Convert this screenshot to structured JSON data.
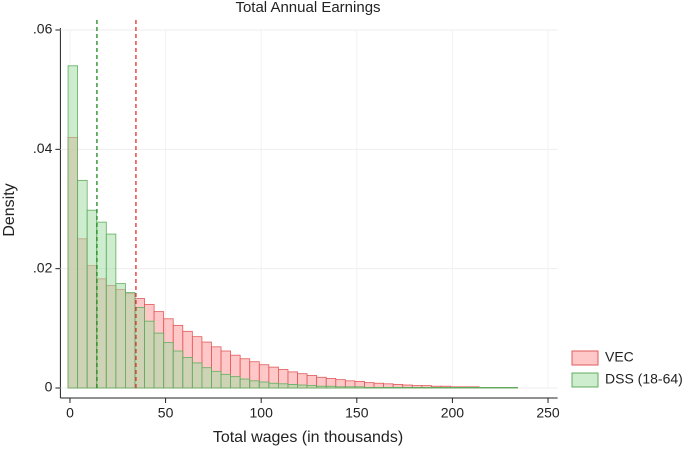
{
  "chart_data": {
    "type": "histogram",
    "title": "Total Annual Earnings",
    "x_label": "Total wages (in thousands)",
    "y_label": "Density",
    "bins": [
      -1,
      4,
      9,
      14,
      19,
      24,
      29,
      34,
      39,
      44,
      49,
      54,
      59,
      64,
      69,
      74,
      79,
      84,
      89,
      94,
      99,
      104,
      109,
      114,
      119,
      124,
      129,
      134,
      139,
      144,
      149,
      154,
      159,
      164,
      169,
      174,
      179,
      184,
      189,
      194,
      199,
      204,
      209,
      214,
      219,
      224,
      229,
      234
    ],
    "series": [
      {
        "name": "VEC",
        "color": "#ff9a9a",
        "line_color": "#e05a5a",
        "values": [
          0.042,
          0.025,
          0.0205,
          0.0183,
          0.0172,
          0.0165,
          0.0158,
          0.015,
          0.014,
          0.0128,
          0.0116,
          0.0105,
          0.0095,
          0.0086,
          0.0077,
          0.0069,
          0.0062,
          0.0055,
          0.0049,
          0.0044,
          0.0039,
          0.0035,
          0.0031,
          0.0027,
          0.0024,
          0.0021,
          0.0018,
          0.0016,
          0.0014,
          0.0012,
          0.0011,
          0.0009,
          0.0008,
          0.0007,
          0.0006,
          0.0005,
          0.0004,
          0.0004,
          0.0003,
          0.0003,
          0.0002,
          0.0002,
          0.0002,
          0.0001,
          0.0001,
          0.0001,
          0.0001
        ]
      },
      {
        "name": "DSS (18-64)",
        "color": "#a6dca6",
        "line_color": "#5fae5f",
        "values": [
          0.054,
          0.0348,
          0.0298,
          0.0278,
          0.0258,
          0.0175,
          0.016,
          0.0135,
          0.0112,
          0.0092,
          0.0076,
          0.0062,
          0.0051,
          0.0042,
          0.0034,
          0.0028,
          0.0023,
          0.0019,
          0.0015,
          0.0012,
          0.001,
          0.0008,
          0.0007,
          0.0006,
          0.0005,
          0.0004,
          0.0003,
          0.0003,
          0.0002,
          0.0002,
          0.0002,
          0.0001,
          0.0001,
          0.0001,
          0.0001,
          0.0001,
          0.0001,
          0.0001,
          0.0001,
          0.0001,
          0.0001,
          0.0001,
          0.0001,
          0.0001,
          0.0001,
          0.0001,
          0.0001
        ]
      }
    ],
    "reference_lines": [
      {
        "x": 34.5,
        "color": "#e0302a"
      },
      {
        "x": 14.1,
        "color": "#1e8a1e"
      }
    ],
    "xlim": [
      -5,
      255
    ],
    "ylim": [
      0,
      0.06
    ],
    "xticks": [
      0,
      50,
      100,
      150,
      200,
      250
    ],
    "yticks": [
      0,
      {
        "value": 0.02,
        "label": ".02"
      },
      {
        "value": 0.04,
        "label": ".04"
      },
      {
        "value": 0.06,
        "label": ".06"
      }
    ],
    "grid": true,
    "legend": "bottom-right"
  }
}
